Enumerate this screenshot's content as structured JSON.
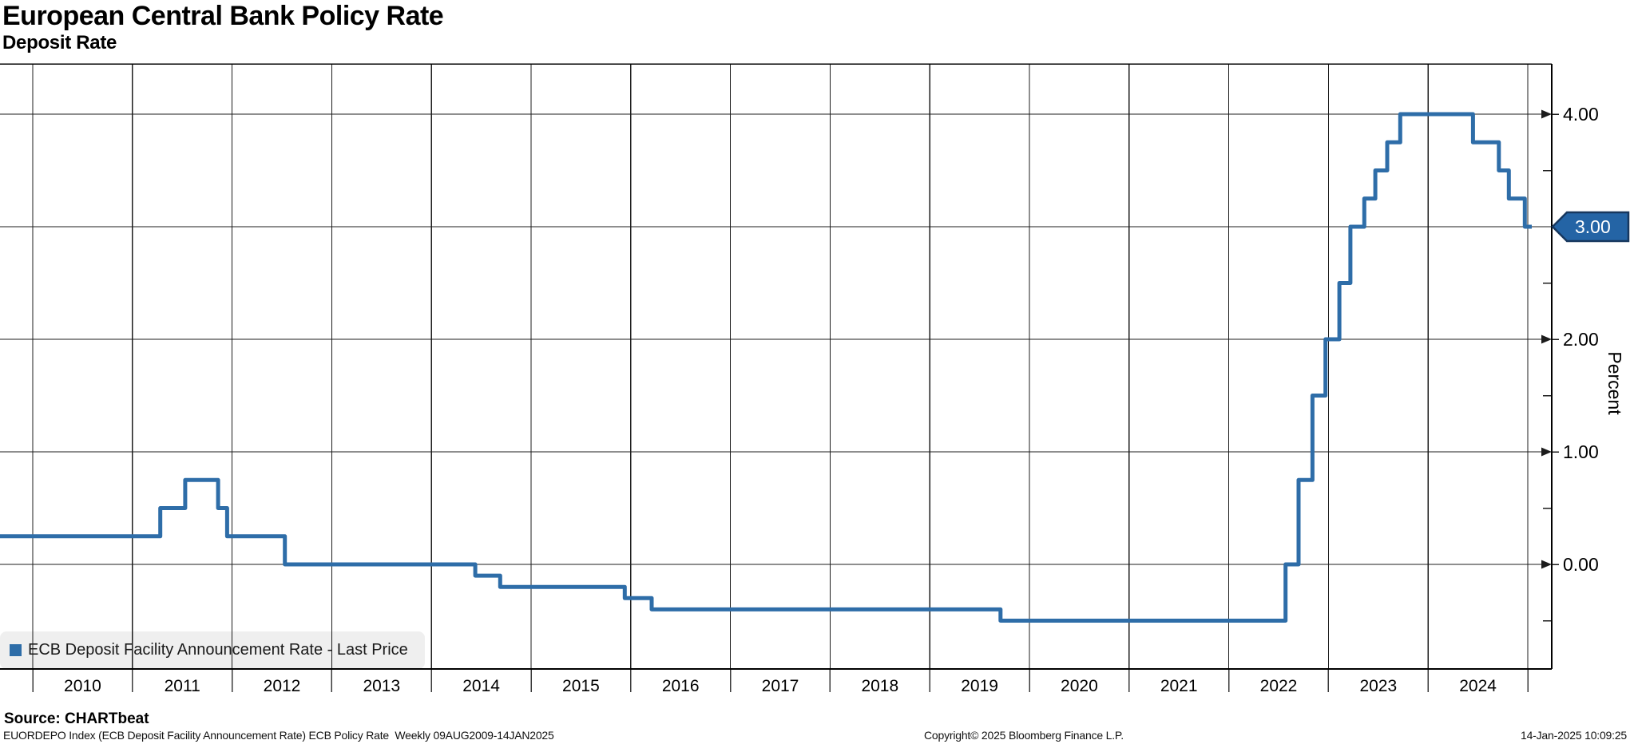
{
  "header": {
    "title": "European Central Bank Policy Rate",
    "subtitle": "Deposit Rate"
  },
  "legend": {
    "label": "ECB Deposit Facility Announcement Rate - Last Price"
  },
  "source_line": "Source: CHARTbeat",
  "footer": {
    "left": "EUORDEPO Index (ECB Deposit Facility Announcement Rate) ECB Policy Rate  Weekly 09AUG2009-14JAN2025",
    "center": "Copyright© 2025 Bloomberg Finance L.P.",
    "right": "14-Jan-2025 10:09:25"
  },
  "colors": {
    "line": "#2E6DA8",
    "badge_fill": "#2464A5",
    "badge_border": "#17375E",
    "badge_text": "#FFFFFF",
    "grid": "#1C1C1C",
    "tick": "#3A3A3A",
    "legend_bg": "#EFEFEF",
    "text": "#000000"
  },
  "chart_data": {
    "type": "line",
    "step": true,
    "title": "European Central Bank Policy Rate",
    "subtitle": "Deposit Rate",
    "ylabel": "Percent",
    "legend_position": "bottom-left",
    "grid": true,
    "y_axis": {
      "side": "right",
      "ylim": [
        -0.92,
        4.45
      ],
      "major_ticks": [
        0.0,
        1.0,
        2.0,
        3.0,
        4.0
      ],
      "major_labels": [
        "0.00",
        "1.00",
        "2.00",
        "3.00",
        "4.00"
      ],
      "minor_ticks": [
        -0.5,
        0.5,
        1.5,
        2.5,
        3.5
      ]
    },
    "x_axis": {
      "xlim_decimal_years": [
        2009.67,
        2025.26
      ],
      "year_ticks": [
        2010,
        2011,
        2012,
        2013,
        2014,
        2015,
        2016,
        2017,
        2018,
        2019,
        2020,
        2021,
        2022,
        2023,
        2024,
        2025
      ],
      "year_labels": [
        "2010",
        "2011",
        "2012",
        "2013",
        "2014",
        "2015",
        "2016",
        "2017",
        "2018",
        "2019",
        "2020",
        "2021",
        "2022",
        "2023",
        "2024"
      ]
    },
    "last_price": {
      "value": 3.0,
      "label": "3.00"
    },
    "series": [
      {
        "name": "ECB Deposit Facility Announcement Rate - Last Price",
        "points": [
          {
            "date": "09AUG2009",
            "t": 2009.6,
            "v": 0.25
          },
          {
            "date": "13APR2011",
            "t": 2011.28,
            "v": 0.5
          },
          {
            "date": "13JUL2011",
            "t": 2011.53,
            "v": 0.75
          },
          {
            "date": "09NOV2011",
            "t": 2011.86,
            "v": 0.5
          },
          {
            "date": "14DEC2011",
            "t": 2011.95,
            "v": 0.25
          },
          {
            "date": "11JUL2012",
            "t": 2012.53,
            "v": 0.0
          },
          {
            "date": "11JUN2014",
            "t": 2014.44,
            "v": -0.1
          },
          {
            "date": "10SEP2014",
            "t": 2014.69,
            "v": -0.2
          },
          {
            "date": "09DEC2015",
            "t": 2015.94,
            "v": -0.3
          },
          {
            "date": "16MAR2016",
            "t": 2016.21,
            "v": -0.4
          },
          {
            "date": "18SEP2019",
            "t": 2019.71,
            "v": -0.5
          },
          {
            "date": "27JUL2022",
            "t": 2022.57,
            "v": 0.0
          },
          {
            "date": "14SEP2022",
            "t": 2022.7,
            "v": 0.75
          },
          {
            "date": "02NOV2022",
            "t": 2022.84,
            "v": 1.5
          },
          {
            "date": "21DEC2022",
            "t": 2022.97,
            "v": 2.0
          },
          {
            "date": "08FEB2023",
            "t": 2023.11,
            "v": 2.5
          },
          {
            "date": "22MAR2023",
            "t": 2023.22,
            "v": 3.0
          },
          {
            "date": "10MAY2023",
            "t": 2023.36,
            "v": 3.25
          },
          {
            "date": "21JUN2023",
            "t": 2023.47,
            "v": 3.5
          },
          {
            "date": "02AUG2023",
            "t": 2023.59,
            "v": 3.75
          },
          {
            "date": "20SEP2023",
            "t": 2023.72,
            "v": 4.0
          },
          {
            "date": "12JUN2024",
            "t": 2024.45,
            "v": 3.75
          },
          {
            "date": "18SEP2024",
            "t": 2024.71,
            "v": 3.5
          },
          {
            "date": "23OCT2024",
            "t": 2024.81,
            "v": 3.25
          },
          {
            "date": "18DEC2024",
            "t": 2024.97,
            "v": 3.0
          },
          {
            "date": "14JAN2025",
            "t": 2025.04,
            "v": 3.0
          }
        ]
      }
    ]
  }
}
